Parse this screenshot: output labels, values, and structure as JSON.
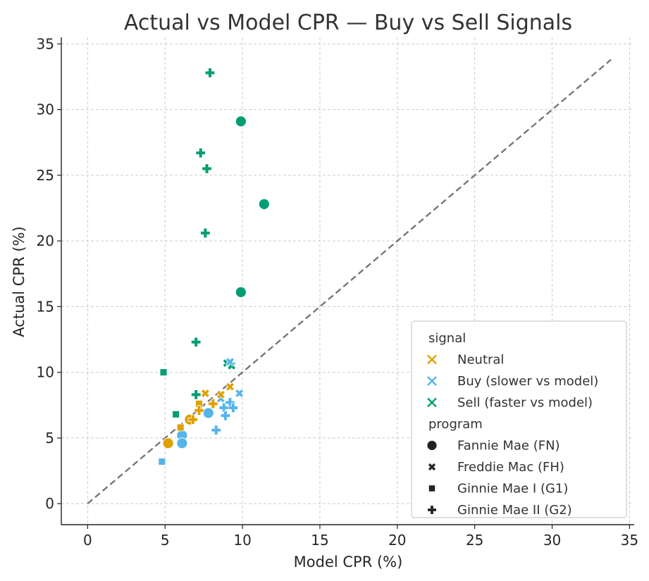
{
  "chart_data": {
    "type": "scatter",
    "title": "Actual vs Model CPR — Buy vs Sell Signals",
    "xlabel": "Model CPR (%)",
    "ylabel": "Actual CPR (%)",
    "xlim": [
      -1.7,
      35.3
    ],
    "ylim": [
      -1.6,
      35.5
    ],
    "xticks": [
      0,
      5,
      10,
      15,
      20,
      25,
      30,
      35
    ],
    "yticks": [
      0,
      5,
      10,
      15,
      20,
      25,
      30,
      35
    ],
    "grid": true,
    "reference_line": {
      "style": "dashed",
      "color": "#777777",
      "from": [
        0,
        0
      ],
      "to": [
        33.8,
        33.8
      ]
    },
    "legend": {
      "placement": "lower-right",
      "signal_title": "signal",
      "program_title": "program",
      "signals": [
        "Neutral",
        "Buy (slower vs model)",
        "Sell (faster vs model)"
      ],
      "programs": [
        "Fannie Mae (FN)",
        "Freddie Mac (FH)",
        "Ginnie Mae I (G1)",
        "Ginnie Mae II (G2)"
      ]
    },
    "colors": {
      "Neutral": "#E0A000",
      "Buy": "#56B4E9",
      "Sell": "#009E73"
    },
    "markers": {
      "FN": "circle",
      "FH": "x",
      "G1": "square",
      "G2": "plus"
    },
    "series": [
      {
        "signal": "Sell",
        "program": "FN",
        "points": [
          [
            9.9,
            29.1
          ],
          [
            11.4,
            22.8
          ],
          [
            9.9,
            16.1
          ]
        ]
      },
      {
        "signal": "Sell",
        "program": "G2",
        "points": [
          [
            7.9,
            32.8
          ],
          [
            7.3,
            26.7
          ],
          [
            7.7,
            25.5
          ],
          [
            7.6,
            20.6
          ],
          [
            7.0,
            12.3
          ],
          [
            7.0,
            8.3
          ]
        ]
      },
      {
        "signal": "Sell",
        "program": "G1",
        "points": [
          [
            4.9,
            10.0
          ],
          [
            5.7,
            6.8
          ]
        ]
      },
      {
        "signal": "Sell",
        "program": "FH",
        "points": [
          [
            9.0,
            10.7
          ],
          [
            9.3,
            10.5
          ]
        ]
      },
      {
        "signal": "Buy",
        "program": "FN",
        "points": [
          [
            7.8,
            6.9
          ],
          [
            6.1,
            5.2
          ],
          [
            6.1,
            4.6
          ]
        ]
      },
      {
        "signal": "Buy",
        "program": "G1",
        "points": [
          [
            4.8,
            3.2
          ]
        ]
      },
      {
        "signal": "Buy",
        "program": "FH",
        "points": [
          [
            9.8,
            8.4
          ],
          [
            8.6,
            8.0
          ],
          [
            9.2,
            10.8
          ]
        ]
      },
      {
        "signal": "Buy",
        "program": "G2",
        "points": [
          [
            8.8,
            7.3
          ],
          [
            8.9,
            6.7
          ],
          [
            9.2,
            7.7
          ],
          [
            9.4,
            7.3
          ],
          [
            8.3,
            5.6
          ]
        ]
      },
      {
        "signal": "Neutral",
        "program": "FN",
        "points": [
          [
            5.2,
            4.6
          ],
          [
            6.6,
            6.4
          ]
        ]
      },
      {
        "signal": "Neutral",
        "program": "FH",
        "points": [
          [
            7.6,
            8.4
          ],
          [
            9.2,
            8.9
          ],
          [
            8.6,
            8.3
          ]
        ]
      },
      {
        "signal": "Neutral",
        "program": "G1",
        "points": [
          [
            7.2,
            7.6
          ],
          [
            6.0,
            5.8
          ]
        ]
      },
      {
        "signal": "Neutral",
        "program": "G2",
        "points": [
          [
            8.1,
            7.6
          ],
          [
            6.8,
            6.4
          ],
          [
            7.2,
            7.1
          ]
        ]
      }
    ]
  }
}
